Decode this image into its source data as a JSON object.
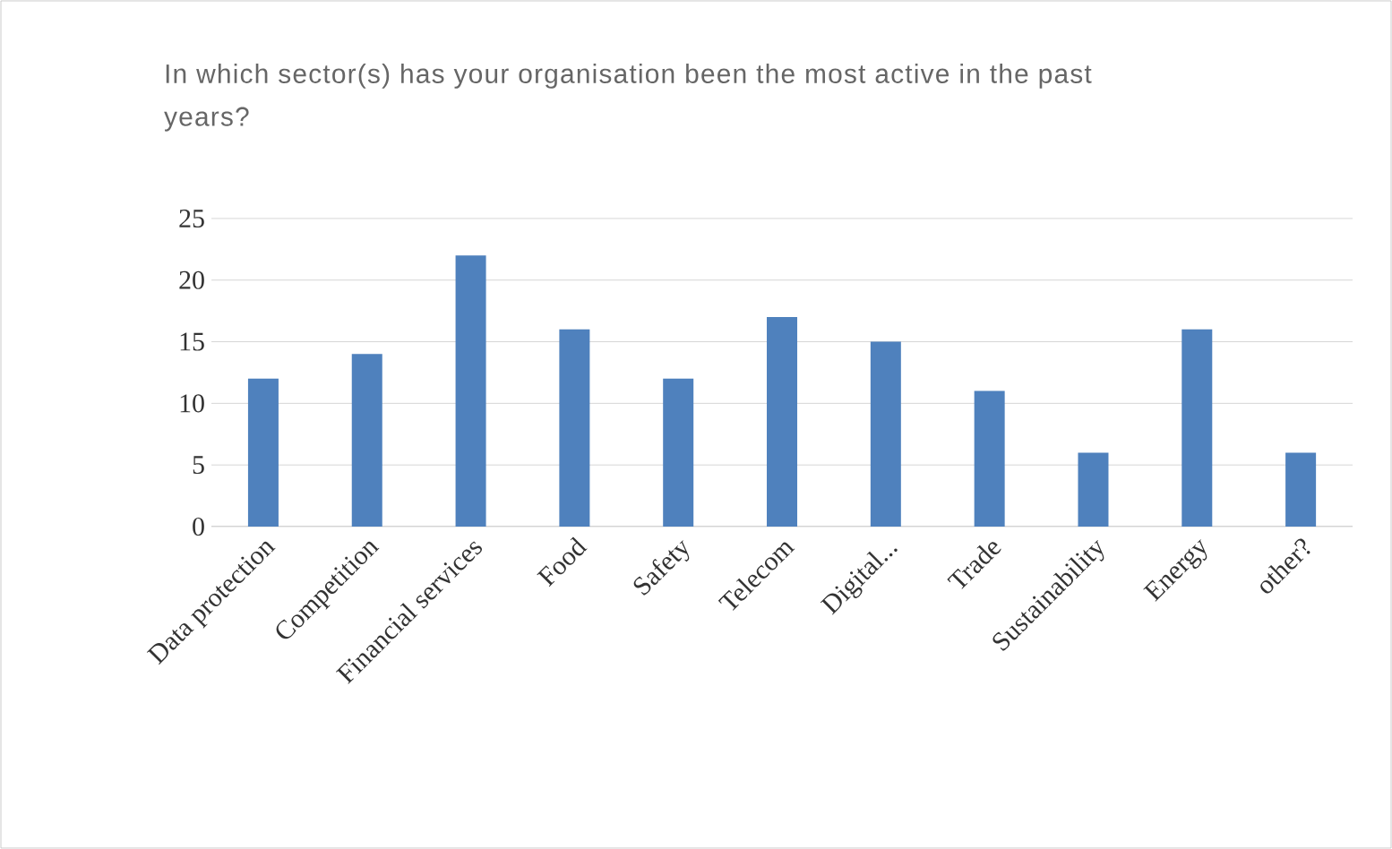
{
  "chart_data": {
    "type": "bar",
    "title": "In which sector(s) has your organisation been the most active in the past years?",
    "categories": [
      "Data protection",
      "Competition",
      "Financial services",
      "Food",
      "Safety",
      "Telecom",
      "Digital...",
      "Trade",
      "Sustainability",
      "Energy",
      "other?"
    ],
    "values": [
      12,
      14,
      22,
      16,
      12,
      17,
      15,
      11,
      6,
      16,
      6
    ],
    "color": "#4f81bd",
    "ylim": [
      0,
      25
    ],
    "yticks": [
      0,
      5,
      10,
      15,
      20,
      25
    ],
    "grid": "y"
  }
}
